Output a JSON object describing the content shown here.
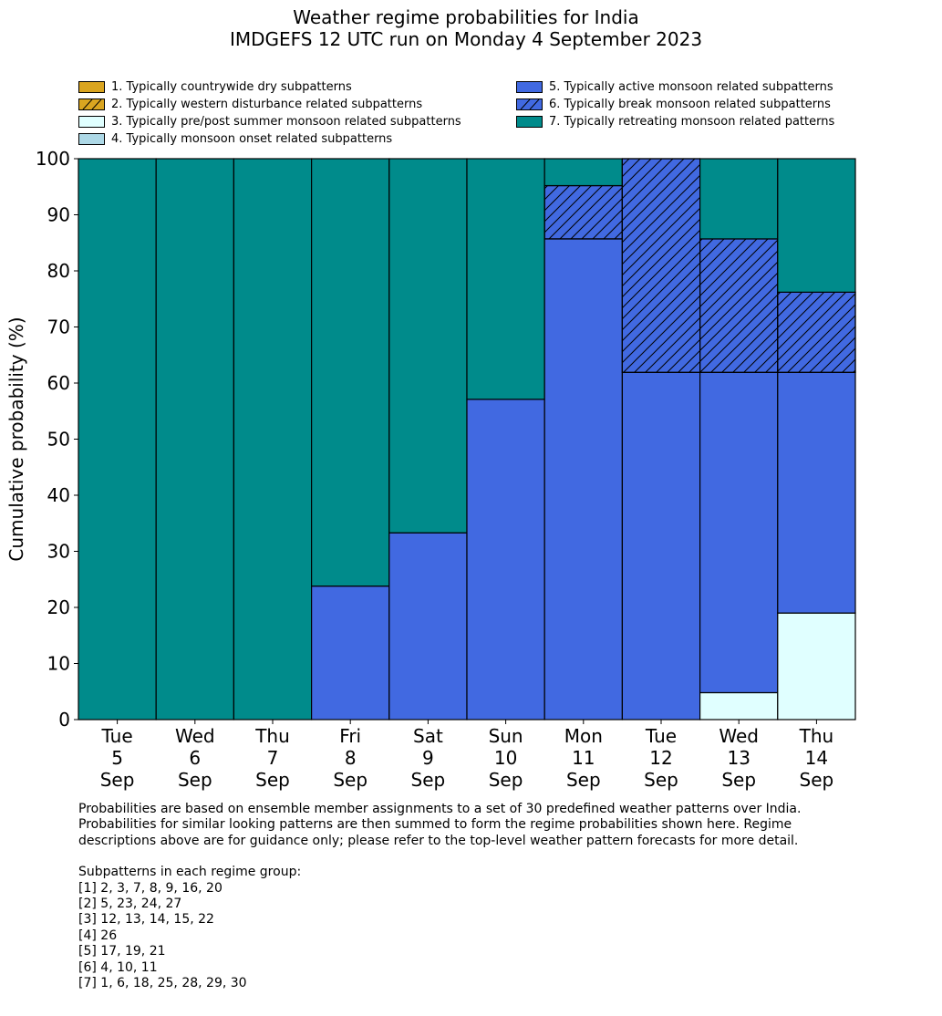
{
  "title_line1": "Weather regime probabilities for India",
  "title_line2": "IMDGEFS 12 UTC run on Monday 4 September 2023",
  "legend": [
    {
      "label": "1. Typically countrywide dry subpatterns",
      "color": "#DAA520",
      "hatch": false
    },
    {
      "label": "2. Typically western disturbance related subpatterns",
      "color": "#DAA520",
      "hatch": true
    },
    {
      "label": "3. Typically pre/post summer monsoon related subpatterns",
      "color": "#E0FFFF",
      "hatch": false
    },
    {
      "label": "4. Typically monsoon onset related subpatterns",
      "color": "#ADD8E6",
      "hatch": false
    },
    {
      "label": "5. Typically active monsoon related subpatterns",
      "color": "#4169E1",
      "hatch": false
    },
    {
      "label": "6. Typically break monsoon related subpatterns",
      "color": "#4169E1",
      "hatch": true
    },
    {
      "label": "7. Typically retreating monsoon related patterns",
      "color": "#008B8B",
      "hatch": false
    }
  ],
  "notes": {
    "paragraph": [
      "Probabilities are based on ensemble member assignments to a set of 30 predefined weather patterns over India.",
      "Probabilities for similar looking patterns are then summed to form the regime probabilities shown here. Regime",
      "descriptions above are for guidance only; please refer to the top-level weather pattern forecasts for more detail."
    ],
    "groups_heading": "Subpatterns in each regime group:",
    "groups": [
      "[1] 2, 3, 7, 8, 9, 16, 20",
      "[2] 5, 23, 24, 27",
      "[3] 12, 13, 14, 15, 22",
      "[4] 26",
      "[5] 17, 19, 21",
      "[6] 4, 10, 11",
      "[7] 1, 6, 18, 25, 28, 29, 30"
    ]
  },
  "chart_data": {
    "type": "bar",
    "stacked": true,
    "ylabel": "Cumulative probability (%)",
    "ylim": [
      0,
      100
    ],
    "yticks": [
      0,
      10,
      20,
      30,
      40,
      50,
      60,
      70,
      80,
      90,
      100
    ],
    "categories": [
      [
        "Tue",
        "5",
        "Sep"
      ],
      [
        "Wed",
        "6",
        "Sep"
      ],
      [
        "Thu",
        "7",
        "Sep"
      ],
      [
        "Fri",
        "8",
        "Sep"
      ],
      [
        "Sat",
        "9",
        "Sep"
      ],
      [
        "Sun",
        "10",
        "Sep"
      ],
      [
        "Mon",
        "11",
        "Sep"
      ],
      [
        "Tue",
        "12",
        "Sep"
      ],
      [
        "Wed",
        "13",
        "Sep"
      ],
      [
        "Thu",
        "14",
        "Sep"
      ]
    ],
    "series": [
      {
        "name": "1. Typically countrywide dry subpatterns",
        "color": "#DAA520",
        "hatch": false,
        "values": [
          0,
          0,
          0,
          0,
          0,
          0,
          0,
          0,
          0,
          0
        ]
      },
      {
        "name": "2. Typically western disturbance related subpatterns",
        "color": "#DAA520",
        "hatch": true,
        "values": [
          0,
          0,
          0,
          0,
          0,
          0,
          0,
          0,
          0,
          0
        ]
      },
      {
        "name": "3. Typically pre/post summer monsoon related subpatterns",
        "color": "#E0FFFF",
        "hatch": false,
        "values": [
          0,
          0,
          0,
          0,
          0,
          0,
          0,
          0,
          4.8,
          19.0
        ]
      },
      {
        "name": "4. Typically monsoon onset related subpatterns",
        "color": "#ADD8E6",
        "hatch": false,
        "values": [
          0,
          0,
          0,
          0,
          0,
          0,
          0,
          0,
          0,
          0
        ]
      },
      {
        "name": "5. Typically active monsoon related subpatterns",
        "color": "#4169E1",
        "hatch": false,
        "values": [
          0,
          0,
          0,
          23.8,
          33.3,
          57.1,
          85.7,
          61.9,
          57.1,
          42.9
        ]
      },
      {
        "name": "6. Typically break monsoon related subpatterns",
        "color": "#4169E1",
        "hatch": true,
        "values": [
          0,
          0,
          0,
          0,
          0,
          0,
          9.5,
          38.1,
          23.8,
          14.3
        ]
      },
      {
        "name": "7. Typically retreating monsoon related patterns",
        "color": "#008B8B",
        "hatch": false,
        "values": [
          100,
          100,
          100,
          76.2,
          66.7,
          42.9,
          4.8,
          0,
          14.3,
          23.8
        ]
      }
    ]
  }
}
